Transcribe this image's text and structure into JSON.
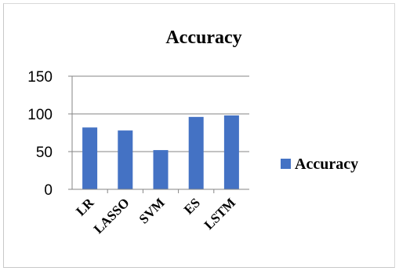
{
  "chart_data": {
    "type": "bar",
    "title": "Accuracy",
    "categories": [
      "LR",
      "LASSO",
      "SVM",
      "ES",
      "LSTM"
    ],
    "series": [
      {
        "name": "Accuracy",
        "values": [
          82,
          78,
          52,
          96,
          98
        ]
      }
    ],
    "ylim": [
      0,
      150
    ],
    "yticks": [
      0,
      50,
      100,
      150
    ],
    "grid": true,
    "legend": "right",
    "colors": {
      "bar": "#4472C4",
      "grid": "#868686",
      "axis": "#868686"
    }
  }
}
